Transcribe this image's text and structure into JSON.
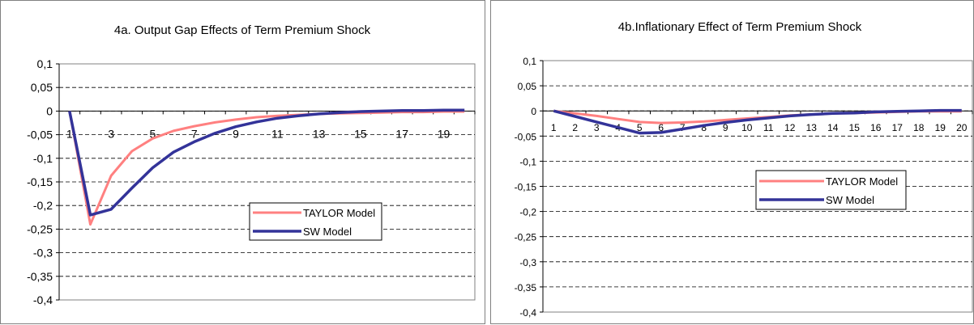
{
  "chart_data": [
    {
      "type": "line",
      "title": "4a. Output Gap Effects of Term Premium Shock",
      "x": [
        1,
        2,
        3,
        4,
        5,
        6,
        7,
        8,
        9,
        10,
        11,
        12,
        13,
        14,
        15,
        16,
        17,
        18,
        19,
        20
      ],
      "x_tick_labels": [
        "1",
        "3",
        "5",
        "7",
        "9",
        "11",
        "13",
        "15",
        "17",
        "19"
      ],
      "ylim": [
        -0.4,
        0.1
      ],
      "y_tick_labels": [
        "0,1",
        "0,05",
        "0",
        "-0,05",
        "-0,1",
        "-0,15",
        "-0,2",
        "-0,25",
        "-0,3",
        "-0,35",
        "-0,4"
      ],
      "grid": true,
      "legend_position": "center-right",
      "series": [
        {
          "name": "TAYLOR Model",
          "color": "#ff8080",
          "values": [
            0,
            -0.24,
            -0.137,
            -0.085,
            -0.058,
            -0.042,
            -0.032,
            -0.024,
            -0.018,
            -0.013,
            -0.01,
            -0.008,
            -0.006,
            -0.005,
            -0.004,
            -0.003,
            -0.002,
            -0.002,
            -0.001,
            -0.001
          ]
        },
        {
          "name": "SW Model",
          "color": "#333399",
          "values": [
            0,
            -0.22,
            -0.208,
            -0.163,
            -0.12,
            -0.087,
            -0.065,
            -0.047,
            -0.033,
            -0.023,
            -0.015,
            -0.01,
            -0.006,
            -0.003,
            -0.001,
            0.0,
            0.001,
            0.001,
            0.002,
            0.002
          ]
        }
      ]
    },
    {
      "type": "line",
      "title": "4b.Inflationary Effect of Term Premium Shock",
      "x": [
        1,
        2,
        3,
        4,
        5,
        6,
        7,
        8,
        9,
        10,
        11,
        12,
        13,
        14,
        15,
        16,
        17,
        18,
        19,
        20
      ],
      "x_tick_labels": [
        "1",
        "2",
        "3",
        "4",
        "5",
        "6",
        "7",
        "8",
        "9",
        "10",
        "11",
        "12",
        "13",
        "14",
        "15",
        "16",
        "17",
        "18",
        "19",
        "20"
      ],
      "ylim": [
        -0.4,
        0.1
      ],
      "y_tick_labels": [
        "0,1",
        "0,05",
        "0",
        "-0,05",
        "-0,1",
        "-0,15",
        "-0,2",
        "-0,25",
        "-0,3",
        "-0,35",
        "-0,4"
      ],
      "grid": true,
      "legend_position": "center-right",
      "series": [
        {
          "name": "TAYLOR Model",
          "color": "#ff8080",
          "values": [
            0,
            -0.005,
            -0.01,
            -0.016,
            -0.022,
            -0.024,
            -0.023,
            -0.021,
            -0.018,
            -0.015,
            -0.012,
            -0.009,
            -0.007,
            -0.005,
            -0.004,
            -0.003,
            -0.002,
            -0.001,
            -0.001,
            -0.001
          ]
        },
        {
          "name": "SW Model",
          "color": "#333399",
          "values": [
            0,
            -0.011,
            -0.022,
            -0.033,
            -0.044,
            -0.043,
            -0.036,
            -0.029,
            -0.023,
            -0.018,
            -0.014,
            -0.01,
            -0.007,
            -0.005,
            -0.004,
            -0.002,
            -0.001,
            0.0,
            0.001,
            0.001
          ]
        }
      ]
    }
  ]
}
